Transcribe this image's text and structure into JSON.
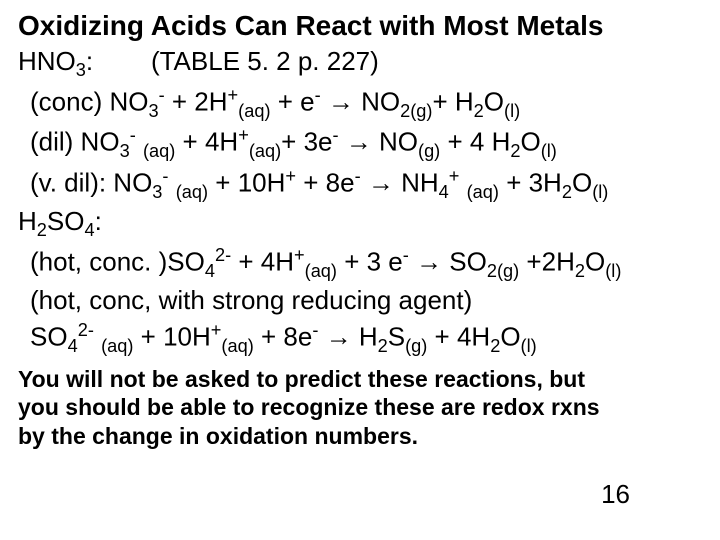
{
  "title": "Oxidizing Acids Can React with Most Metals",
  "hno3_label": "HNO",
  "hno3_sub": "3",
  "hno3_ref": "(TABLE 5. 2 p. 227)",
  "eq1_prefix": "(conc) NO",
  "eq1_rest1": " + 2H",
  "eq1_rest2": " + e",
  "eq1_rest3": " → NO",
  "eq1_rest4": "+ H",
  "eq1_rest5": "O",
  "eq2_prefix": "(dil) NO",
  "eq2_rest1": " + 4H",
  "eq2_rest2": "+ 3e",
  "eq2_rest3": " → NO",
  "eq2_rest4": " + 4 H",
  "eq2_rest5": "O",
  "eq3_prefix": "(v. dil): NO",
  "eq3_rest1": " + 10H",
  "eq3_rest2": " + 8e",
  "eq3_rest3": " → NH",
  "eq3_rest4": " + 3H",
  "eq3_rest5": "O",
  "h2so4_label": "H",
  "h2so4_mid": "SO",
  "eq4_prefix": "(hot, conc. )SO",
  "eq4_rest1": " + 4H",
  "eq4_rest2": " + 3 e",
  "eq4_rest3": " → SO",
  "eq4_rest4": " +2H",
  "eq4_rest5": "O",
  "eq5_line1": "(hot, conc, with strong reducing agent)",
  "eq5_prefix": "SO",
  "eq5_rest1": " + 10H",
  "eq5_rest2": " + 8e",
  "eq5_rest3": " → H",
  "eq5_rest4": "S",
  "eq5_rest5": " + 4H",
  "eq5_rest6": "O",
  "footer1": "You will not be asked to predict these reactions, but",
  "footer2": " you should be able to recognize these are redox rxns",
  "footer3": " by the change in oxidation numbers.",
  "page_number": "16",
  "aq": "(aq)",
  "g": "(g)",
  "l": "(l)",
  "colon": ":",
  "sup_minus": "-",
  "sup_plus": "+",
  "sup_2minus": "2-",
  "n2": "2",
  "n3": "3",
  "n4": "4"
}
